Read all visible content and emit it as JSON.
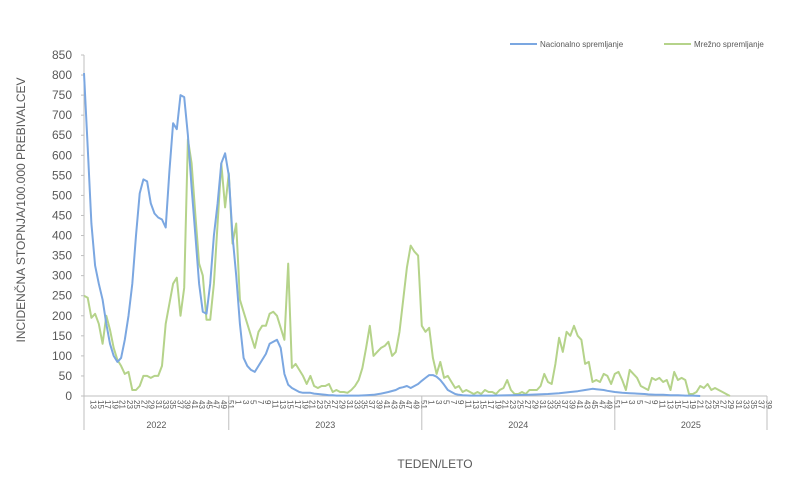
{
  "chart_data": {
    "type": "line",
    "title": "",
    "ylabel": "INCIDENČNA  STOPNJA/100.000  PREBIVALCEV",
    "xlabel": "TEDEN/LETO",
    "ylim": [
      0,
      850
    ],
    "y_ticks": [
      0,
      50,
      100,
      150,
      200,
      250,
      300,
      350,
      400,
      450,
      500,
      550,
      600,
      650,
      700,
      750,
      800,
      850
    ],
    "grid": false,
    "legend_position": "top-right",
    "years": [
      {
        "label": "2022",
        "start_week": 1,
        "end_week": 39
      },
      {
        "label": "2023",
        "start_week": 40,
        "end_week": 91
      },
      {
        "label": "2024",
        "start_week": 92,
        "end_week": 143
      },
      {
        "label": "2025",
        "start_week": 144,
        "end_week": 182
      }
    ],
    "week_ticks": {
      "2022": [
        "13",
        "15",
        "17",
        "19",
        "21",
        "23",
        "25",
        "27",
        "29",
        "31",
        "33",
        "35",
        "37",
        "39",
        "41",
        "43",
        "45",
        "47",
        "49",
        "51"
      ],
      "2023": [
        "1",
        "3",
        "5",
        "7",
        "9",
        "11",
        "13",
        "15",
        "17",
        "19",
        "21",
        "23",
        "25",
        "27",
        "29",
        "31",
        "33",
        "35",
        "37",
        "39",
        "41",
        "43",
        "45",
        "47",
        "49",
        "51"
      ],
      "2024": [
        "1",
        "3",
        "5",
        "7",
        "9",
        "11",
        "13",
        "15",
        "17",
        "19",
        "21",
        "23",
        "25",
        "27",
        "29",
        "31",
        "33",
        "35",
        "37",
        "39",
        "41",
        "43",
        "45",
        "47",
        "49",
        "51"
      ],
      "2025": [
        "1",
        "3",
        "5",
        "7",
        "9",
        "11",
        "13",
        "15",
        "17",
        "19",
        "21",
        "23",
        "25",
        "27",
        "29",
        "31",
        "33",
        "35",
        "37",
        "39"
      ]
    },
    "series": [
      {
        "name": "Nacionalno spremljanje",
        "color": "#7BA7E1",
        "points": [
          [
            0,
            805
          ],
          [
            1,
            620
          ],
          [
            2,
            430
          ],
          [
            3,
            325
          ],
          [
            4,
            280
          ],
          [
            5,
            240
          ],
          [
            6,
            180
          ],
          [
            7,
            130
          ],
          [
            8,
            100
          ],
          [
            9,
            85
          ],
          [
            10,
            95
          ],
          [
            11,
            140
          ],
          [
            12,
            200
          ],
          [
            13,
            280
          ],
          [
            14,
            400
          ],
          [
            15,
            505
          ],
          [
            16,
            540
          ],
          [
            17,
            535
          ],
          [
            18,
            480
          ],
          [
            19,
            455
          ],
          [
            20,
            445
          ],
          [
            21,
            440
          ],
          [
            22,
            420
          ],
          [
            23,
            560
          ],
          [
            24,
            680
          ],
          [
            25,
            665
          ],
          [
            26,
            750
          ],
          [
            27,
            745
          ],
          [
            28,
            650
          ],
          [
            29,
            520
          ],
          [
            30,
            400
          ],
          [
            31,
            280
          ],
          [
            32,
            210
          ],
          [
            33,
            205
          ],
          [
            34,
            280
          ],
          [
            35,
            400
          ],
          [
            36,
            480
          ],
          [
            37,
            580
          ],
          [
            38,
            605
          ],
          [
            39,
            550
          ],
          [
            40,
            400
          ],
          [
            41,
            300
          ],
          [
            42,
            180
          ],
          [
            43,
            95
          ],
          [
            44,
            75
          ],
          [
            45,
            65
          ],
          [
            46,
            60
          ],
          [
            47,
            75
          ],
          [
            48,
            90
          ],
          [
            49,
            105
          ],
          [
            50,
            130
          ],
          [
            51,
            135
          ],
          [
            52,
            140
          ],
          [
            53,
            120
          ],
          [
            54,
            55
          ],
          [
            55,
            28
          ],
          [
            56,
            20
          ],
          [
            57,
            15
          ],
          [
            58,
            10
          ],
          [
            59,
            8
          ],
          [
            60,
            8
          ],
          [
            61,
            8
          ],
          [
            62,
            6
          ],
          [
            63,
            5
          ],
          [
            64,
            4
          ],
          [
            65,
            3
          ],
          [
            66,
            2
          ],
          [
            67,
            2
          ],
          [
            68,
            1
          ],
          [
            69,
            1
          ],
          [
            70,
            1
          ],
          [
            72,
            1
          ],
          [
            74,
            1
          ],
          [
            76,
            2
          ],
          [
            78,
            3
          ],
          [
            80,
            6
          ],
          [
            82,
            10
          ],
          [
            84,
            15
          ],
          [
            85,
            20
          ],
          [
            86,
            22
          ],
          [
            87,
            25
          ],
          [
            88,
            20
          ],
          [
            89,
            25
          ],
          [
            90,
            30
          ],
          [
            91,
            38
          ],
          [
            92,
            45
          ],
          [
            93,
            52
          ],
          [
            94,
            52
          ],
          [
            95,
            48
          ],
          [
            96,
            40
          ],
          [
            97,
            28
          ],
          [
            98,
            15
          ],
          [
            99,
            10
          ],
          [
            100,
            5
          ],
          [
            101,
            3
          ],
          [
            102,
            2
          ],
          [
            104,
            1
          ],
          [
            106,
            1
          ],
          [
            110,
            1
          ],
          [
            115,
            2
          ],
          [
            120,
            3
          ],
          [
            125,
            5
          ],
          [
            128,
            7
          ],
          [
            131,
            10
          ],
          [
            133,
            12
          ],
          [
            135,
            15
          ],
          [
            137,
            18
          ],
          [
            138,
            17
          ],
          [
            140,
            15
          ],
          [
            141,
            13
          ],
          [
            143,
            10
          ],
          [
            145,
            8
          ],
          [
            147,
            7
          ],
          [
            149,
            6
          ],
          [
            151,
            5
          ],
          [
            152,
            4
          ],
          [
            154,
            3
          ],
          [
            156,
            3
          ],
          [
            158,
            2
          ],
          [
            160,
            2
          ],
          [
            162,
            1
          ],
          [
            164,
            1
          ],
          [
            166,
            0
          ]
        ]
      },
      {
        "name": "Mrežno spremljanje",
        "color": "#B5D38A",
        "points": [
          [
            0,
            250
          ],
          [
            1,
            245
          ],
          [
            2,
            195
          ],
          [
            3,
            205
          ],
          [
            4,
            180
          ],
          [
            5,
            130
          ],
          [
            6,
            200
          ],
          [
            7,
            165
          ],
          [
            8,
            120
          ],
          [
            9,
            90
          ],
          [
            10,
            75
          ],
          [
            11,
            55
          ],
          [
            12,
            60
          ],
          [
            13,
            15
          ],
          [
            14,
            15
          ],
          [
            15,
            25
          ],
          [
            16,
            50
          ],
          [
            17,
            50
          ],
          [
            18,
            45
          ],
          [
            19,
            50
          ],
          [
            20,
            50
          ],
          [
            21,
            75
          ],
          [
            22,
            180
          ],
          [
            23,
            230
          ],
          [
            24,
            280
          ],
          [
            25,
            295
          ],
          [
            26,
            200
          ],
          [
            27,
            270
          ],
          [
            28,
            640
          ],
          [
            29,
            580
          ],
          [
            30,
            450
          ],
          [
            31,
            330
          ],
          [
            32,
            300
          ],
          [
            33,
            190
          ],
          [
            34,
            190
          ],
          [
            35,
            280
          ],
          [
            36,
            430
          ],
          [
            37,
            580
          ],
          [
            38,
            470
          ],
          [
            39,
            555
          ],
          [
            40,
            380
          ],
          [
            41,
            430
          ],
          [
            42,
            240
          ],
          [
            43,
            210
          ],
          [
            44,
            180
          ],
          [
            45,
            150
          ],
          [
            46,
            120
          ],
          [
            47,
            160
          ],
          [
            48,
            175
          ],
          [
            49,
            175
          ],
          [
            50,
            205
          ],
          [
            51,
            210
          ],
          [
            52,
            200
          ],
          [
            53,
            170
          ],
          [
            54,
            140
          ],
          [
            55,
            330
          ],
          [
            56,
            70
          ],
          [
            57,
            80
          ],
          [
            58,
            65
          ],
          [
            59,
            50
          ],
          [
            60,
            30
          ],
          [
            61,
            50
          ],
          [
            62,
            25
          ],
          [
            63,
            20
          ],
          [
            64,
            25
          ],
          [
            65,
            25
          ],
          [
            66,
            30
          ],
          [
            67,
            10
          ],
          [
            68,
            15
          ],
          [
            69,
            10
          ],
          [
            70,
            10
          ],
          [
            71,
            8
          ],
          [
            72,
            15
          ],
          [
            73,
            25
          ],
          [
            74,
            40
          ],
          [
            75,
            70
          ],
          [
            76,
            120
          ],
          [
            77,
            175
          ],
          [
            78,
            100
          ],
          [
            79,
            110
          ],
          [
            80,
            120
          ],
          [
            81,
            125
          ],
          [
            82,
            135
          ],
          [
            83,
            100
          ],
          [
            84,
            110
          ],
          [
            85,
            160
          ],
          [
            86,
            240
          ],
          [
            87,
            320
          ],
          [
            88,
            375
          ],
          [
            89,
            360
          ],
          [
            90,
            350
          ],
          [
            91,
            175
          ],
          [
            92,
            160
          ],
          [
            93,
            170
          ],
          [
            94,
            95
          ],
          [
            95,
            55
          ],
          [
            96,
            85
          ],
          [
            97,
            45
          ],
          [
            98,
            50
          ],
          [
            99,
            35
          ],
          [
            100,
            20
          ],
          [
            101,
            25
          ],
          [
            102,
            10
          ],
          [
            103,
            15
          ],
          [
            104,
            10
          ],
          [
            105,
            5
          ],
          [
            106,
            10
          ],
          [
            107,
            5
          ],
          [
            108,
            15
          ],
          [
            109,
            10
          ],
          [
            110,
            10
          ],
          [
            111,
            5
          ],
          [
            112,
            15
          ],
          [
            113,
            20
          ],
          [
            114,
            40
          ],
          [
            115,
            15
          ],
          [
            116,
            5
          ],
          [
            117,
            5
          ],
          [
            118,
            10
          ],
          [
            119,
            5
          ],
          [
            120,
            15
          ],
          [
            121,
            15
          ],
          [
            122,
            15
          ],
          [
            123,
            25
          ],
          [
            124,
            55
          ],
          [
            125,
            35
          ],
          [
            126,
            30
          ],
          [
            127,
            80
          ],
          [
            128,
            145
          ],
          [
            129,
            110
          ],
          [
            130,
            160
          ],
          [
            131,
            150
          ],
          [
            132,
            175
          ],
          [
            133,
            150
          ],
          [
            134,
            140
          ],
          [
            135,
            80
          ],
          [
            136,
            85
          ],
          [
            137,
            35
          ],
          [
            138,
            40
          ],
          [
            139,
            35
          ],
          [
            140,
            55
          ],
          [
            141,
            50
          ],
          [
            142,
            30
          ],
          [
            143,
            55
          ],
          [
            144,
            60
          ],
          [
            145,
            40
          ],
          [
            146,
            15
          ],
          [
            147,
            65
          ],
          [
            148,
            55
          ],
          [
            149,
            45
          ],
          [
            150,
            25
          ],
          [
            151,
            20
          ],
          [
            152,
            15
          ],
          [
            153,
            45
          ],
          [
            154,
            40
          ],
          [
            155,
            45
          ],
          [
            156,
            35
          ],
          [
            157,
            40
          ],
          [
            158,
            15
          ],
          [
            159,
            60
          ],
          [
            160,
            40
          ],
          [
            161,
            45
          ],
          [
            162,
            40
          ],
          [
            163,
            5
          ],
          [
            164,
            5
          ],
          [
            165,
            10
          ],
          [
            166,
            25
          ],
          [
            167,
            20
          ],
          [
            168,
            30
          ],
          [
            169,
            15
          ],
          [
            170,
            20
          ],
          [
            171,
            15
          ],
          [
            172,
            10
          ],
          [
            173,
            5
          ],
          [
            174,
            0
          ]
        ]
      }
    ]
  }
}
